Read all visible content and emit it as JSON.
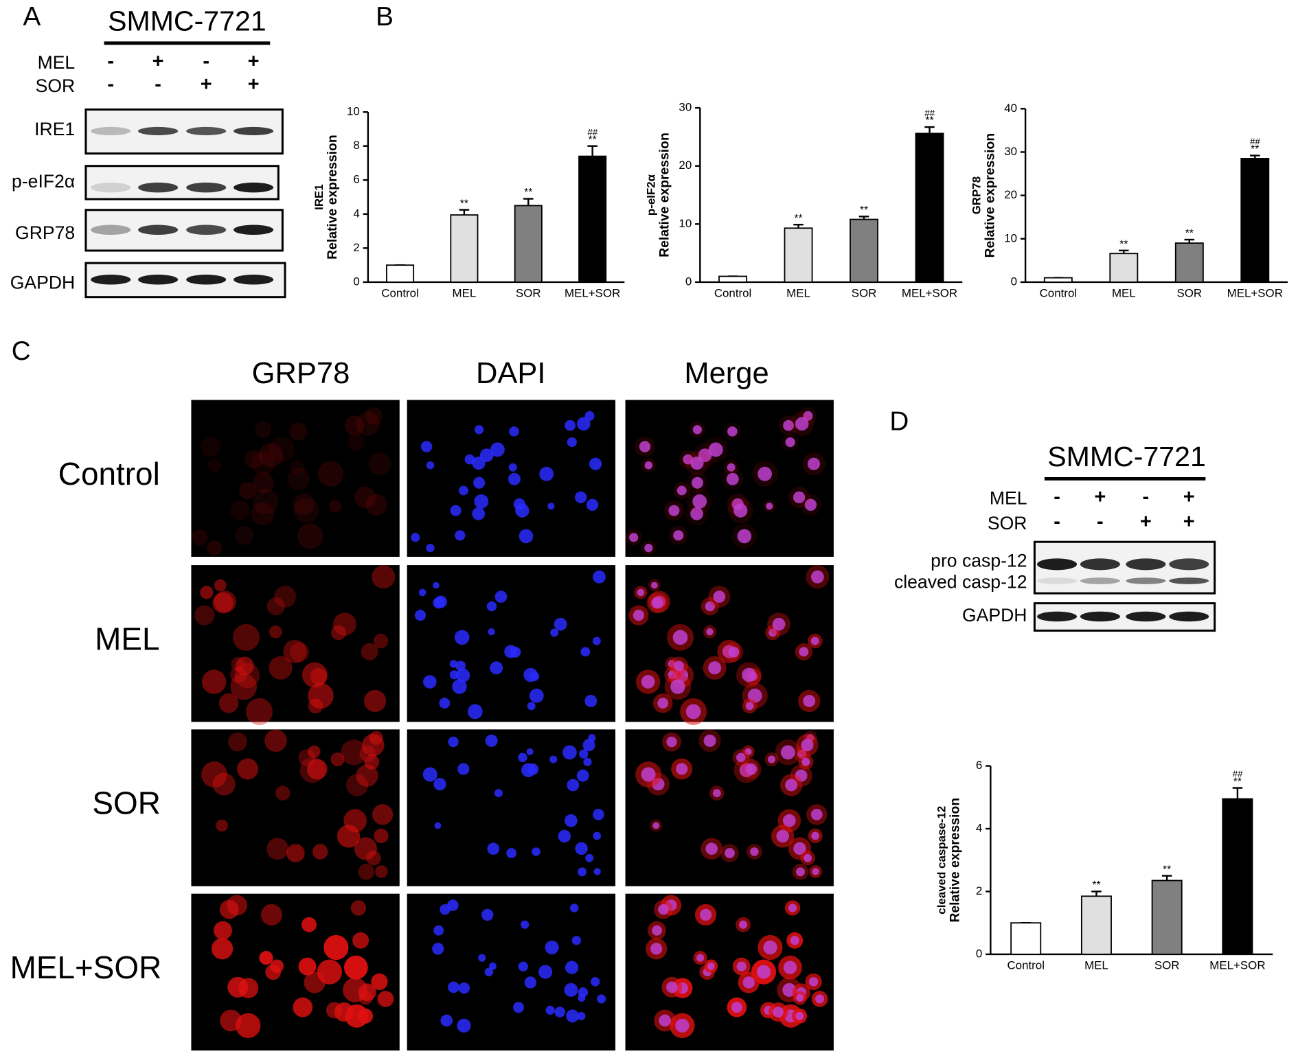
{
  "panels": {
    "a": "A",
    "b": "B",
    "c": "C",
    "d": "D"
  },
  "blot_a": {
    "cell_line": "SMMC-7721",
    "treatments": [
      {
        "name": "MEL",
        "signs": [
          "-",
          "+",
          "-",
          "+"
        ]
      },
      {
        "name": "SOR",
        "signs": [
          "-",
          "-",
          "+",
          "+"
        ]
      }
    ],
    "bands": [
      "IRE1",
      "p-eIF2α",
      "GRP78",
      "GAPDH"
    ]
  },
  "imaging": {
    "columns": [
      "GRP78",
      "DAPI",
      "Merge"
    ],
    "rows": [
      "Control",
      "MEL",
      "SOR",
      "MEL+SOR"
    ]
  },
  "blot_d": {
    "cell_line": "SMMC-7721",
    "treatments": [
      {
        "name": "MEL",
        "signs": [
          "-",
          "+",
          "-",
          "+"
        ]
      },
      {
        "name": "SOR",
        "signs": [
          "-",
          "-",
          "+",
          "+"
        ]
      }
    ],
    "bands": [
      "pro casp-12",
      "cleaved casp-12",
      "GAPDH"
    ]
  },
  "chart_data": [
    {
      "type": "bar",
      "ylabel": [
        "IRE1",
        "Relative expression"
      ],
      "categories": [
        "Control",
        "MEL",
        "SOR",
        "MEL+SOR"
      ],
      "values": [
        1,
        3.95,
        4.5,
        7.4
      ],
      "errors": [
        0,
        0.3,
        0.4,
        0.6
      ],
      "colors": [
        "#ffffff",
        "#e0e0e0",
        "#808080",
        "#000000"
      ],
      "ylim": [
        0,
        10
      ],
      "yticks": [
        0,
        2,
        4,
        6,
        8,
        10
      ],
      "significance": [
        null,
        "**",
        "**",
        "**"
      ],
      "significance_2": [
        null,
        null,
        null,
        "##"
      ]
    },
    {
      "type": "bar",
      "ylabel": [
        "p-eIF2α",
        "Relative expression"
      ],
      "categories": [
        "Control",
        "MEL",
        "SOR",
        "MEL+SOR"
      ],
      "values": [
        1,
        9.3,
        10.8,
        25.6
      ],
      "errors": [
        0,
        0.6,
        0.5,
        1.1
      ],
      "colors": [
        "#ffffff",
        "#e0e0e0",
        "#808080",
        "#000000"
      ],
      "ylim": [
        0,
        30
      ],
      "yticks": [
        0,
        10,
        20,
        30
      ],
      "significance": [
        null,
        "**",
        "**",
        "**"
      ],
      "significance_2": [
        null,
        null,
        null,
        "##"
      ]
    },
    {
      "type": "bar",
      "ylabel": [
        "GRP78",
        "Relative expression"
      ],
      "categories": [
        "Control",
        "MEL",
        "SOR",
        "MEL+SOR"
      ],
      "values": [
        1,
        6.6,
        9,
        28.5
      ],
      "errors": [
        0,
        0.7,
        0.8,
        0.7
      ],
      "colors": [
        "#ffffff",
        "#e0e0e0",
        "#808080",
        "#000000"
      ],
      "ylim": [
        0,
        40
      ],
      "yticks": [
        0,
        10,
        20,
        30,
        40
      ],
      "significance": [
        null,
        "**",
        "**",
        "**"
      ],
      "significance_2": [
        null,
        null,
        null,
        "##"
      ]
    },
    {
      "type": "bar",
      "ylabel": [
        "cleaved caspase-12",
        "Relative expression"
      ],
      "categories": [
        "Control",
        "MEL",
        "SOR",
        "MEL+SOR"
      ],
      "values": [
        1,
        1.85,
        2.35,
        4.95
      ],
      "errors": [
        0,
        0.15,
        0.15,
        0.35
      ],
      "colors": [
        "#ffffff",
        "#e0e0e0",
        "#808080",
        "#000000"
      ],
      "ylim": [
        0,
        6
      ],
      "yticks": [
        0,
        2,
        4,
        6
      ],
      "significance": [
        null,
        "**",
        "**",
        "**"
      ],
      "significance_2": [
        null,
        null,
        null,
        "##"
      ]
    }
  ]
}
